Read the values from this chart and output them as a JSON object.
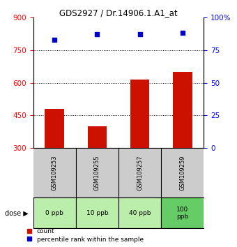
{
  "title": "GDS2927 / Dr.14906.1.A1_at",
  "samples": [
    "GSM109253",
    "GSM109255",
    "GSM109257",
    "GSM109259"
  ],
  "doses": [
    "0 ppb",
    "10 ppb",
    "40 ppb",
    "100\nppb"
  ],
  "bar_values": [
    480,
    400,
    615,
    650
  ],
  "percentile_values": [
    83,
    87,
    87,
    88
  ],
  "bar_color": "#cc1100",
  "percentile_color": "#0000cc",
  "ylim_left": [
    300,
    900
  ],
  "ylim_right": [
    0,
    100
  ],
  "yticks_left": [
    300,
    450,
    600,
    750,
    900
  ],
  "yticks_right": [
    0,
    25,
    50,
    75,
    100
  ],
  "grid_lines": [
    450,
    600,
    750
  ],
  "dose_colors": [
    "#bbeeaa",
    "#bbeeaa",
    "#bbeeaa",
    "#66cc66"
  ],
  "label_count": "count",
  "label_percentile": "percentile rank within the sample",
  "xlabel_area_color": "#cccccc",
  "title_fontsize": 8.5
}
